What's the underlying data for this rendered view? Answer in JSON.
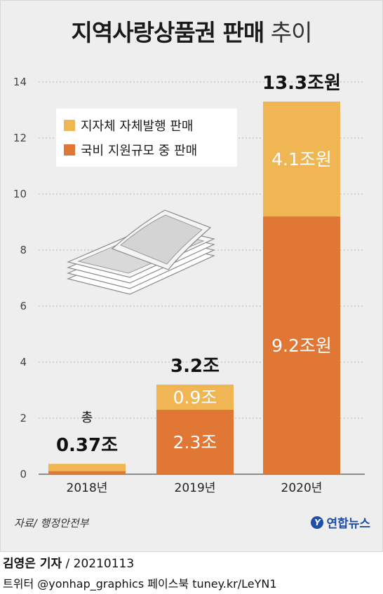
{
  "title": {
    "bold": "지역사랑상품권 판매",
    "light": "추이"
  },
  "source": "자료/ 행정안전부",
  "logo": "연합뉴스",
  "byline": {
    "author": "김영은 기자",
    "date": "/ 20210113"
  },
  "social": "트위터 @yonhap_graphics  페이스북 tuney.kr/LeYN1",
  "colors": {
    "self": "#f0b654",
    "national": "#e07735",
    "background": "#eeeeee"
  },
  "chart_data": {
    "type": "bar",
    "stacked": true,
    "categories": [
      "2018년",
      "2019년",
      "2020년"
    ],
    "series": [
      {
        "name": "국비 지원규모 중 판매",
        "values": [
          0.11,
          2.3,
          9.2
        ],
        "color": "#e07735"
      },
      {
        "name": "지자체 자체발행 판매",
        "values": [
          0.26,
          0.9,
          4.1
        ],
        "color": "#f0b654"
      }
    ],
    "ylim": [
      0,
      14
    ],
    "yticks": [
      "0",
      "2",
      "4",
      "6",
      "8",
      "10",
      "12",
      "14"
    ],
    "grid": true,
    "legend": "top-left",
    "segment_labels": [
      {
        "category": 1,
        "series": 0,
        "text": "2.3조"
      },
      {
        "category": 1,
        "series": 1,
        "text": "0.9조"
      },
      {
        "category": 2,
        "series": 0,
        "text": "9.2조원"
      },
      {
        "category": 2,
        "series": 1,
        "text": "4.1조원"
      }
    ],
    "total_labels": [
      {
        "category": 0,
        "prefix": "총",
        "text": "0.37조"
      },
      {
        "category": 1,
        "prefix": "",
        "text": "3.2조"
      },
      {
        "category": 2,
        "prefix": "",
        "text": "13.3조원"
      }
    ]
  }
}
